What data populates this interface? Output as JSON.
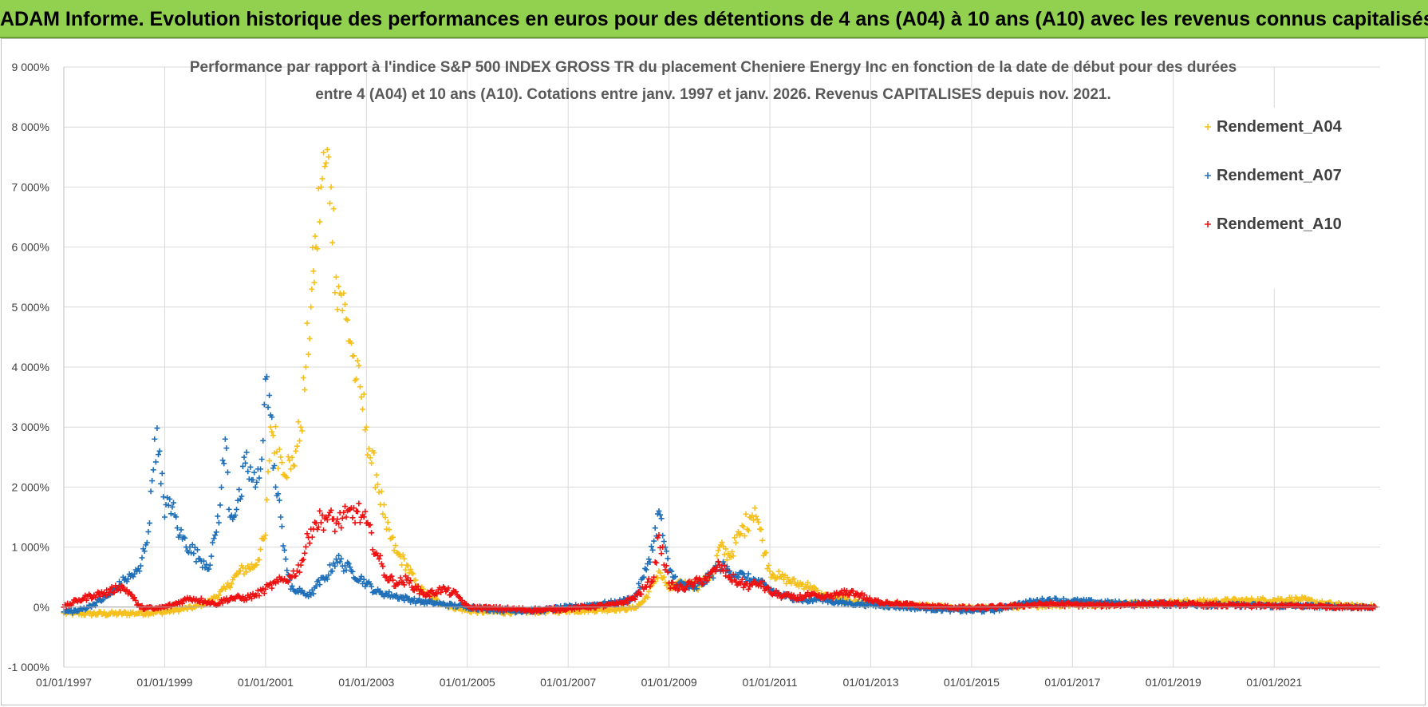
{
  "header": {
    "title": "ADAM Informe. Evolution historique des performances en euros pour des détentions de 4 ans (A04) à 10 ans (A10) avec les revenus connus capitalisés"
  },
  "colors": {
    "banner": "#92d050",
    "grid": "#d9d9d9",
    "A04": "#f5c01c",
    "A07": "#1f6fb8",
    "A10": "#ee1111"
  },
  "chart_data": {
    "type": "scatter",
    "title_line1": "Performance par rapport à l'indice S&P 500 INDEX GROSS TR  du placement Cheniere Energy Inc en fonction de la date de début pour des durées",
    "title_line2": "entre 4 (A04) et 10 ans (A10).  Cotations entre janv. 1997 et janv. 2026. Revenus CAPITALISES depuis nov. 2021.",
    "xlabel": "",
    "ylabel": "",
    "xlim": [
      1997.0,
      2023.1
    ],
    "ylim": [
      -1000,
      9000
    ],
    "grid": true,
    "legend_position": "top-right",
    "y_ticks": [
      {
        "value": 9000,
        "label": "9 000%"
      },
      {
        "value": 8000,
        "label": "8 000%"
      },
      {
        "value": 7000,
        "label": "7 000%"
      },
      {
        "value": 6000,
        "label": "6 000%"
      },
      {
        "value": 5000,
        "label": "5 000%"
      },
      {
        "value": 4000,
        "label": "4 000%"
      },
      {
        "value": 3000,
        "label": "3 000%"
      },
      {
        "value": 2000,
        "label": "2 000%"
      },
      {
        "value": 1000,
        "label": "1 000%"
      },
      {
        "value": 0,
        "label": "0%"
      },
      {
        "value": -1000,
        "label": "-1 000%"
      }
    ],
    "x_ticks": [
      {
        "value": 1997,
        "label": "01/01/1997"
      },
      {
        "value": 1999,
        "label": "01/01/1999"
      },
      {
        "value": 2001,
        "label": "01/01/2001"
      },
      {
        "value": 2003,
        "label": "01/01/2003"
      },
      {
        "value": 2005,
        "label": "01/01/2005"
      },
      {
        "value": 2007,
        "label": "01/01/2007"
      },
      {
        "value": 2009,
        "label": "01/01/2009"
      },
      {
        "value": 2011,
        "label": "01/01/2011"
      },
      {
        "value": 2013,
        "label": "01/01/2013"
      },
      {
        "value": 2015,
        "label": "01/01/2015"
      },
      {
        "value": 2017,
        "label": "01/01/2017"
      },
      {
        "value": 2019,
        "label": "01/01/2019"
      },
      {
        "value": 2021,
        "label": "01/01/2021"
      }
    ],
    "series": [
      {
        "name": "Rendement_A04",
        "color": "#f5c01c",
        "x": [
          1997.0,
          1997.5,
          1998.0,
          1998.5,
          1999.0,
          1999.3,
          1999.6,
          1999.9,
          2000.2,
          2000.5,
          2000.8,
          2001.0,
          2001.1,
          2001.3,
          2001.5,
          2001.6,
          2001.7,
          2001.8,
          2001.9,
          2001.95,
          2002.0,
          2002.1,
          2002.2,
          2002.3,
          2002.4,
          2002.5,
          2002.6,
          2002.7,
          2002.8,
          2002.9,
          2003.0,
          2003.1,
          2003.2,
          2003.4,
          2003.6,
          2003.8,
          2004.0,
          2004.3,
          2004.6,
          2005.0,
          2005.5,
          2006.0,
          2006.5,
          2007.0,
          2007.5,
          2008.0,
          2008.3,
          2008.5,
          2008.7,
          2008.8,
          2009.0,
          2009.3,
          2009.6,
          2009.9,
          2010.0,
          2010.2,
          2010.4,
          2010.6,
          2010.7,
          2010.8,
          2010.9,
          2011.0,
          2011.2,
          2011.5,
          2011.8,
          2012.0,
          2012.3,
          2012.6,
          2013.0,
          2013.5,
          2014.0,
          2014.5,
          2015.0,
          2015.5,
          2016.0,
          2016.5,
          2017.0,
          2017.5,
          2018.0,
          2018.5,
          2019.0,
          2019.5,
          2020.0,
          2020.5,
          2021.0,
          2021.5,
          2022.0,
          2022.5,
          2023.0
        ],
        "values": [
          -100,
          -110,
          -110,
          -100,
          -80,
          -40,
          0,
          100,
          300,
          600,
          700,
          1200,
          3000,
          2500,
          2300,
          2600,
          3000,
          4000,
          5000,
          5600,
          6000,
          7000,
          7400,
          7000,
          5500,
          5200,
          4800,
          4400,
          3800,
          3500,
          3000,
          2400,
          2200,
          1300,
          900,
          700,
          350,
          150,
          20,
          -60,
          -80,
          -80,
          -70,
          -60,
          -50,
          -30,
          -20,
          100,
          400,
          600,
          300,
          400,
          350,
          600,
          1000,
          850,
          1200,
          1500,
          1650,
          1300,
          900,
          600,
          500,
          400,
          350,
          200,
          150,
          100,
          60,
          40,
          20,
          0,
          -20,
          -10,
          10,
          30,
          40,
          50,
          60,
          70,
          80,
          90,
          100,
          110,
          120,
          130,
          60,
          20,
          10
        ]
      },
      {
        "name": "Rendement_A07",
        "color": "#1f6fb8",
        "x": [
          1997.0,
          1997.3,
          1997.6,
          1997.9,
          1998.2,
          1998.5,
          1998.7,
          1998.8,
          1998.9,
          1999.0,
          1999.1,
          1999.3,
          1999.5,
          1999.7,
          1999.9,
          2000.0,
          2000.1,
          2000.2,
          2000.3,
          2000.5,
          2000.6,
          2000.8,
          2000.9,
          2001.0,
          2001.1,
          2001.2,
          2001.3,
          2001.4,
          2001.5,
          2001.7,
          2001.9,
          2002.0,
          2002.2,
          2002.4,
          2002.7,
          2003.0,
          2003.2,
          2003.5,
          2004.0,
          2004.5,
          2005.0,
          2005.5,
          2006.0,
          2006.5,
          2007.0,
          2007.5,
          2008.0,
          2008.3,
          2008.5,
          2008.6,
          2008.7,
          2008.8,
          2009.0,
          2009.2,
          2009.5,
          2009.8,
          2010.0,
          2010.2,
          2010.5,
          2010.8,
          2011.0,
          2011.2,
          2011.5,
          2011.8,
          2012.0,
          2012.3,
          2012.6,
          2013.0,
          2013.3,
          2013.6,
          2014.0,
          2014.5,
          2015.0,
          2015.5,
          2016.0,
          2016.5,
          2017.0,
          2017.5,
          2018.0,
          2018.5,
          2019.0,
          2019.5,
          2020.0,
          2020.5,
          2021.0,
          2021.5,
          2022.0,
          2022.5,
          2023.0
        ],
        "values": [
          -80,
          -60,
          50,
          200,
          450,
          600,
          1400,
          2800,
          2600,
          1500,
          1800,
          1200,
          1000,
          800,
          700,
          1200,
          1700,
          2800,
          1500,
          1800,
          2400,
          2000,
          2300,
          3800,
          3200,
          2000,
          1500,
          800,
          300,
          250,
          200,
          350,
          500,
          800,
          600,
          400,
          250,
          200,
          100,
          50,
          0,
          -40,
          -60,
          -50,
          0,
          40,
          80,
          150,
          500,
          800,
          1100,
          1600,
          600,
          400,
          300,
          500,
          700,
          600,
          500,
          400,
          300,
          200,
          150,
          100,
          150,
          80,
          60,
          40,
          20,
          0,
          -20,
          -40,
          -60,
          -40,
          60,
          120,
          100,
          80,
          60,
          60,
          50,
          40,
          30,
          30,
          20,
          20,
          10,
          5,
          0
        ]
      },
      {
        "name": "Rendement_A10",
        "color": "#ee1111",
        "x": [
          1997.0,
          1997.3,
          1997.6,
          1997.9,
          1998.1,
          1998.3,
          1998.5,
          1998.8,
          1999.0,
          1999.2,
          1999.5,
          1999.8,
          2000.0,
          2000.3,
          2000.6,
          2000.8,
          2001.0,
          2001.2,
          2001.5,
          2001.7,
          2001.9,
          2002.0,
          2002.2,
          2002.4,
          2002.6,
          2002.8,
          2003.0,
          2003.2,
          2003.4,
          2003.6,
          2003.8,
          2004.0,
          2004.2,
          2004.5,
          2004.8,
          2005.0,
          2005.5,
          2006.0,
          2006.5,
          2007.0,
          2007.5,
          2008.0,
          2008.3,
          2008.5,
          2008.7,
          2008.8,
          2009.0,
          2009.2,
          2009.5,
          2009.8,
          2010.0,
          2010.2,
          2010.4,
          2010.6,
          2010.8,
          2011.0,
          2011.2,
          2011.5,
          2011.8,
          2012.0,
          2012.3,
          2012.6,
          2012.8,
          2013.0,
          2013.3,
          2013.6,
          2014.0,
          2014.5,
          2015.0,
          2015.5,
          2016.0,
          2016.5,
          2017.0,
          2017.5,
          2018.0,
          2018.5,
          2019.0,
          2019.5,
          2020.0,
          2020.5,
          2021.0,
          2021.5,
          2022.0,
          2022.5,
          2023.0
        ],
        "values": [
          0,
          120,
          200,
          250,
          350,
          250,
          0,
          -30,
          0,
          50,
          150,
          100,
          50,
          150,
          150,
          200,
          300,
          400,
          500,
          700,
          1300,
          1400,
          1500,
          1400,
          1500,
          1600,
          1400,
          900,
          500,
          400,
          450,
          300,
          200,
          300,
          200,
          0,
          -20,
          -40,
          -50,
          -20,
          10,
          50,
          150,
          300,
          500,
          1200,
          400,
          300,
          400,
          500,
          700,
          500,
          400,
          350,
          400,
          250,
          200,
          150,
          200,
          150,
          200,
          250,
          200,
          100,
          80,
          50,
          20,
          0,
          -20,
          0,
          30,
          50,
          40,
          30,
          40,
          50,
          50,
          40,
          30,
          20,
          20,
          20,
          10,
          5,
          0
        ]
      }
    ]
  }
}
